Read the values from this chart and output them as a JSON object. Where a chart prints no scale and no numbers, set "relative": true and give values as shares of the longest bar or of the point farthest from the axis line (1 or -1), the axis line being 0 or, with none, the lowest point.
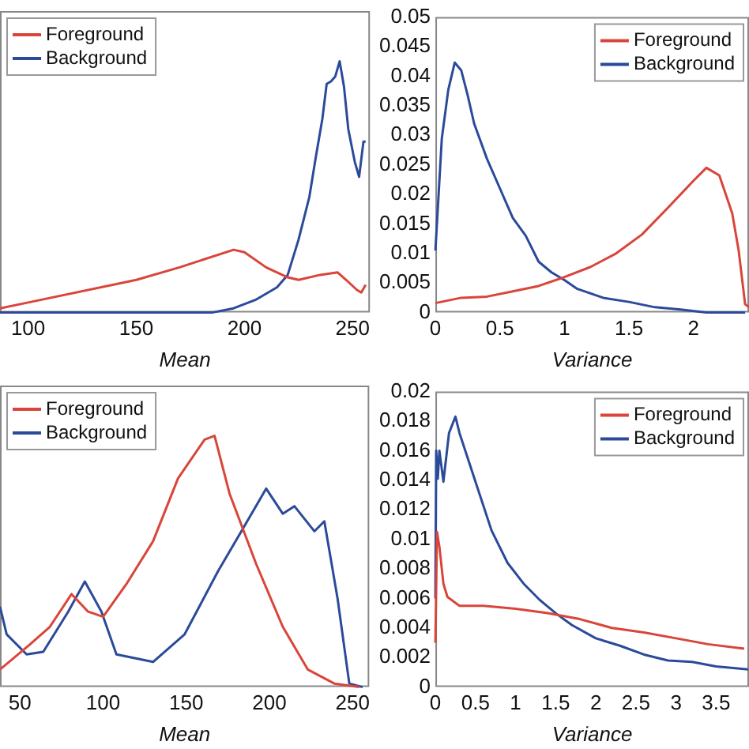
{
  "chart_data": [
    {
      "type": "line",
      "xlabel": "Mean",
      "relative": true,
      "xlim": [
        87,
        258
      ],
      "xticks": [
        100,
        150,
        200,
        250
      ],
      "grid": false,
      "legend": "top left",
      "marker": "none",
      "series": [
        {
          "name": "Foreground",
          "color": "#d9453a",
          "x": [
            87,
            100,
            150,
            170,
            195,
            200,
            210,
            220,
            225,
            235,
            243,
            247,
            252,
            254,
            256
          ],
          "values": [
            0.017,
            0.04,
            0.13,
            0.18,
            0.25,
            0.24,
            0.18,
            0.14,
            0.13,
            0.15,
            0.16,
            0.13,
            0.09,
            0.08,
            0.11
          ]
        },
        {
          "name": "Background",
          "color": "#2b4a9a",
          "x": [
            87,
            185,
            195,
            205,
            215,
            220,
            225,
            230,
            233,
            236,
            238,
            240,
            242,
            244,
            246,
            248,
            251,
            253,
            255,
            256
          ],
          "values": [
            0,
            0,
            0.017,
            0.05,
            0.1,
            0.15,
            0.29,
            0.46,
            0.62,
            0.77,
            0.91,
            0.92,
            0.94,
            1,
            0.9,
            0.73,
            0.6,
            0.54,
            0.68,
            0.68
          ]
        }
      ]
    },
    {
      "type": "line",
      "xlabel": "Variance",
      "xlim": [
        0,
        2.43
      ],
      "xticks": [
        0,
        0.5,
        1,
        1.5,
        2
      ],
      "ylim": [
        0,
        0.05
      ],
      "yticks": [
        0,
        0.005,
        0.01,
        0.015,
        0.02,
        0.025,
        0.03,
        0.035,
        0.04,
        0.045,
        0.05
      ],
      "grid": false,
      "legend": "top right",
      "marker": "none",
      "series": [
        {
          "name": "Foreground",
          "color": "#d9453a",
          "x": [
            0,
            0.2,
            0.4,
            0.6,
            0.8,
            1.0,
            1.2,
            1.4,
            1.6,
            1.8,
            2.0,
            2.1,
            2.2,
            2.3,
            2.35,
            2.4,
            2.43
          ],
          "values": [
            0.0016,
            0.0025,
            0.0027,
            0.0036,
            0.0045,
            0.006,
            0.0077,
            0.01,
            0.0132,
            0.0177,
            0.0223,
            0.0245,
            0.0232,
            0.0168,
            0.0105,
            0.0014,
            0.0009
          ]
        },
        {
          "name": "Background",
          "color": "#2b4a9a",
          "x": [
            0,
            0.05,
            0.1,
            0.15,
            0.2,
            0.25,
            0.3,
            0.4,
            0.5,
            0.6,
            0.7,
            0.8,
            0.9,
            1.0,
            1.1,
            1.3,
            1.5,
            1.7,
            1.9,
            2.1,
            2.4
          ],
          "values": [
            0.0105,
            0.0295,
            0.0377,
            0.0423,
            0.041,
            0.0368,
            0.032,
            0.026,
            0.021,
            0.016,
            0.013,
            0.0086,
            0.0068,
            0.0055,
            0.004,
            0.0025,
            0.0018,
            0.0009,
            0.0005,
            0,
            0
          ]
        }
      ]
    },
    {
      "type": "line",
      "xlabel": "Mean",
      "relative": true,
      "xlim": [
        38,
        260
      ],
      "xticks": [
        50,
        100,
        150,
        200,
        250
      ],
      "grid": false,
      "legend": "top left",
      "marker": "none",
      "series": [
        {
          "name": "Foreground",
          "color": "#d9453a",
          "x": [
            38,
            56,
            68,
            81,
            91,
            100,
            114,
            130,
            145,
            161,
            167,
            176,
            192,
            208,
            223,
            239,
            254
          ],
          "values": [
            0.07,
            0.17,
            0.24,
            0.37,
            0.3,
            0.28,
            0.41,
            0.58,
            0.83,
            0.985,
            1,
            0.77,
            0.49,
            0.24,
            0.07,
            0.014,
            0
          ]
        },
        {
          "name": "Background",
          "color": "#2b4a9a",
          "x": [
            38,
            42,
            54,
            64,
            79,
            89,
            99,
            108,
            130,
            149,
            169,
            184,
            198,
            208,
            215,
            227,
            233,
            241,
            248,
            256
          ],
          "values": [
            0.32,
            0.21,
            0.13,
            0.14,
            0.3,
            0.42,
            0.3,
            0.13,
            0.1,
            0.21,
            0.46,
            0.63,
            0.79,
            0.69,
            0.72,
            0.62,
            0.66,
            0.35,
            0.014,
            0
          ]
        }
      ]
    },
    {
      "type": "line",
      "xlabel": "Variance",
      "xlim": [
        0,
        3.91
      ],
      "xticks": [
        0,
        0.5,
        1,
        1.5,
        2,
        2.5,
        3,
        3.5
      ],
      "ylim": [
        0,
        0.02
      ],
      "yticks": [
        0,
        0.002,
        0.004,
        0.006,
        0.008,
        0.01,
        0.012,
        0.014,
        0.016,
        0.018,
        0.02
      ],
      "grid": false,
      "legend": "top right",
      "marker": "none",
      "series": [
        {
          "name": "Foreground",
          "color": "#d9453a",
          "x": [
            0,
            0.02,
            0.05,
            0.1,
            0.15,
            0.3,
            0.6,
            1.0,
            1.4,
            1.8,
            2.2,
            2.6,
            3.0,
            3.4,
            3.85
          ],
          "values": [
            0.003,
            0.0105,
            0.0095,
            0.007,
            0.0061,
            0.0055,
            0.0055,
            0.0053,
            0.005,
            0.0046,
            0.004,
            0.0037,
            0.0033,
            0.0029,
            0.0026
          ]
        },
        {
          "name": "Background",
          "color": "#2b4a9a",
          "x": [
            0,
            0.01,
            0.03,
            0.05,
            0.1,
            0.17,
            0.25,
            0.3,
            0.5,
            0.7,
            0.9,
            1.1,
            1.3,
            1.5,
            1.7,
            2.0,
            2.3,
            2.6,
            2.9,
            3.2,
            3.5,
            3.9
          ],
          "values": [
            0.006,
            0.016,
            0.0141,
            0.016,
            0.0139,
            0.0172,
            0.0183,
            0.0172,
            0.0139,
            0.0106,
            0.0084,
            0.007,
            0.0059,
            0.005,
            0.0042,
            0.0033,
            0.0028,
            0.0022,
            0.0018,
            0.0017,
            0.0014,
            0.0012
          ]
        }
      ]
    }
  ]
}
